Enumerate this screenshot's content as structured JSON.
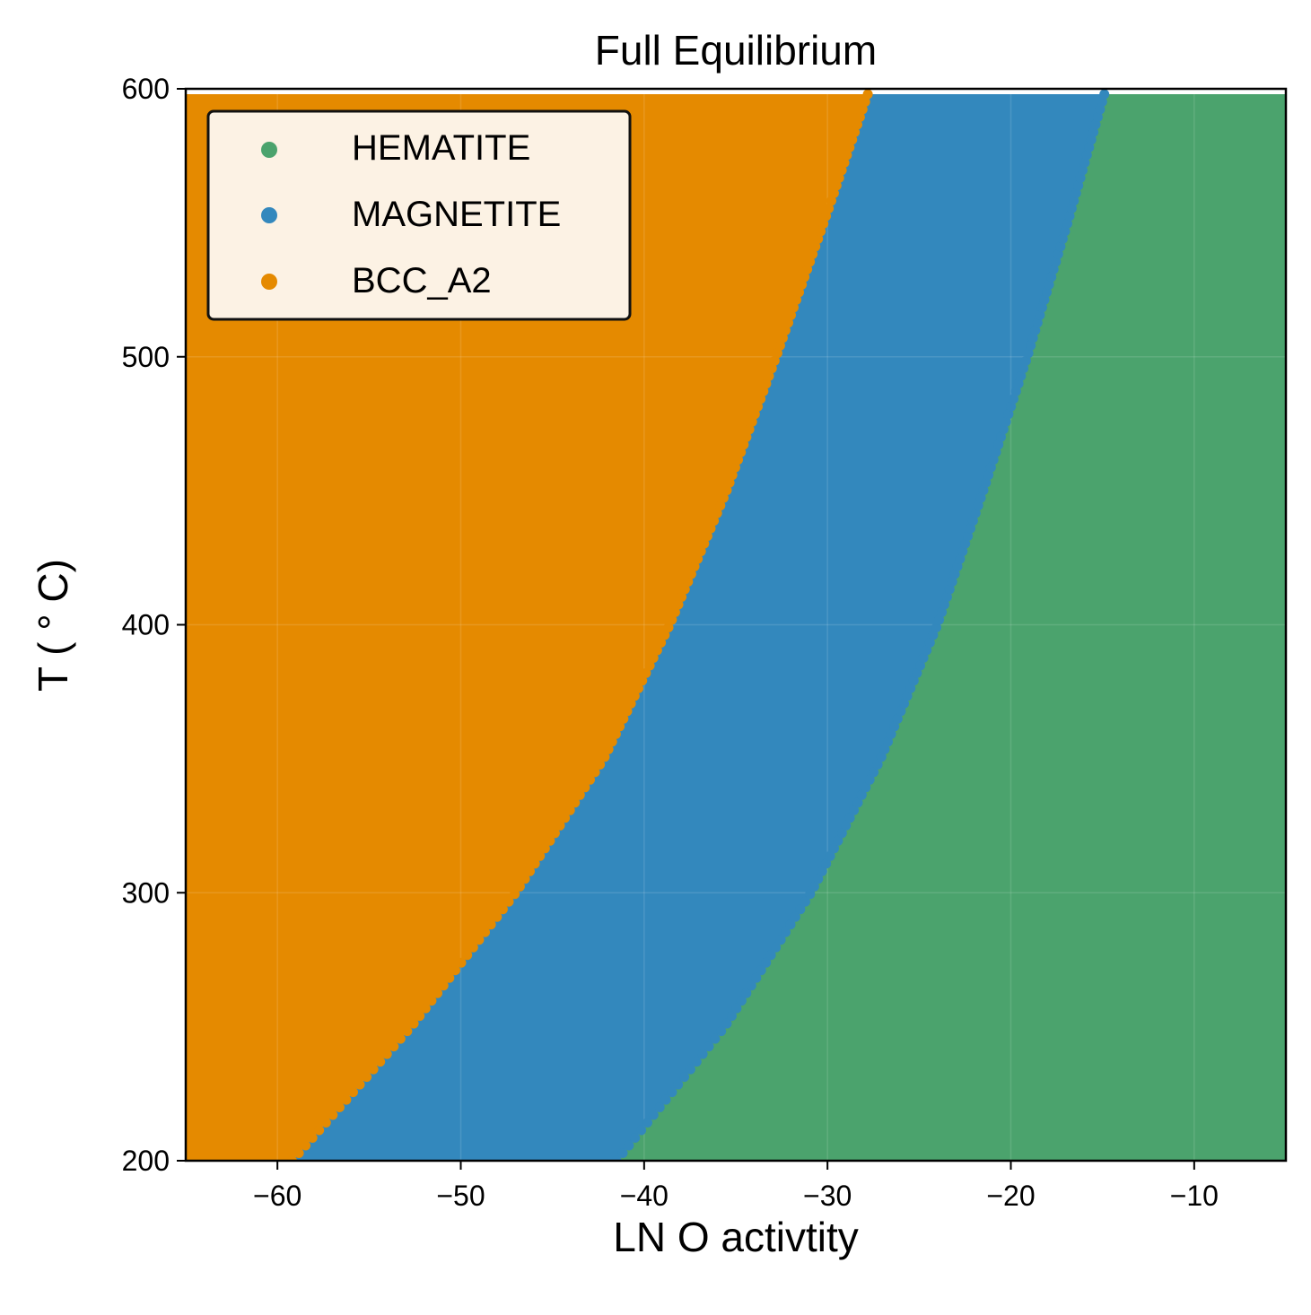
{
  "chart_data": {
    "type": "scatter",
    "title": "Full Equilibrium",
    "xlabel": "LN O activtity",
    "ylabel": "T ( ° C)",
    "xlim": [
      -65,
      -5
    ],
    "ylim": [
      200,
      600
    ],
    "x_ticks": [
      -60,
      -50,
      -40,
      -30,
      -20,
      -10
    ],
    "x_tick_labels": [
      "−60",
      "−50",
      "−40",
      "−30",
      "−20",
      "−10"
    ],
    "y_ticks": [
      200,
      300,
      400,
      500,
      600
    ],
    "y_tick_labels": [
      "200",
      "300",
      "400",
      "500",
      "600"
    ],
    "grid": true,
    "legend_position": "top-left",
    "data_y_range": [
      200,
      598
    ],
    "series": [
      {
        "name": "HEMATITE",
        "color": "#4ba36d"
      },
      {
        "name": "MAGNETITE",
        "color": "#3388bd"
      },
      {
        "name": "BCC_A2",
        "color": "#e58a00"
      }
    ],
    "boundaries": {
      "BCC_A2_to_MAGNETITE": {
        "T": [
          200,
          250,
          300,
          350,
          400,
          450,
          500,
          550,
          598
        ],
        "lnO": [
          -59.2,
          -52.7,
          -47.0,
          -42.2,
          -38.6,
          -35.5,
          -32.8,
          -30.2,
          -27.8
        ]
      },
      "MAGNETITE_to_HEMATITE": {
        "T": [
          200,
          250,
          300,
          350,
          400,
          450,
          500,
          550,
          598
        ],
        "lnO": [
          -41.5,
          -35.6,
          -30.9,
          -27.1,
          -24.0,
          -21.5,
          -19.1,
          -16.9,
          -14.9
        ]
      }
    }
  }
}
